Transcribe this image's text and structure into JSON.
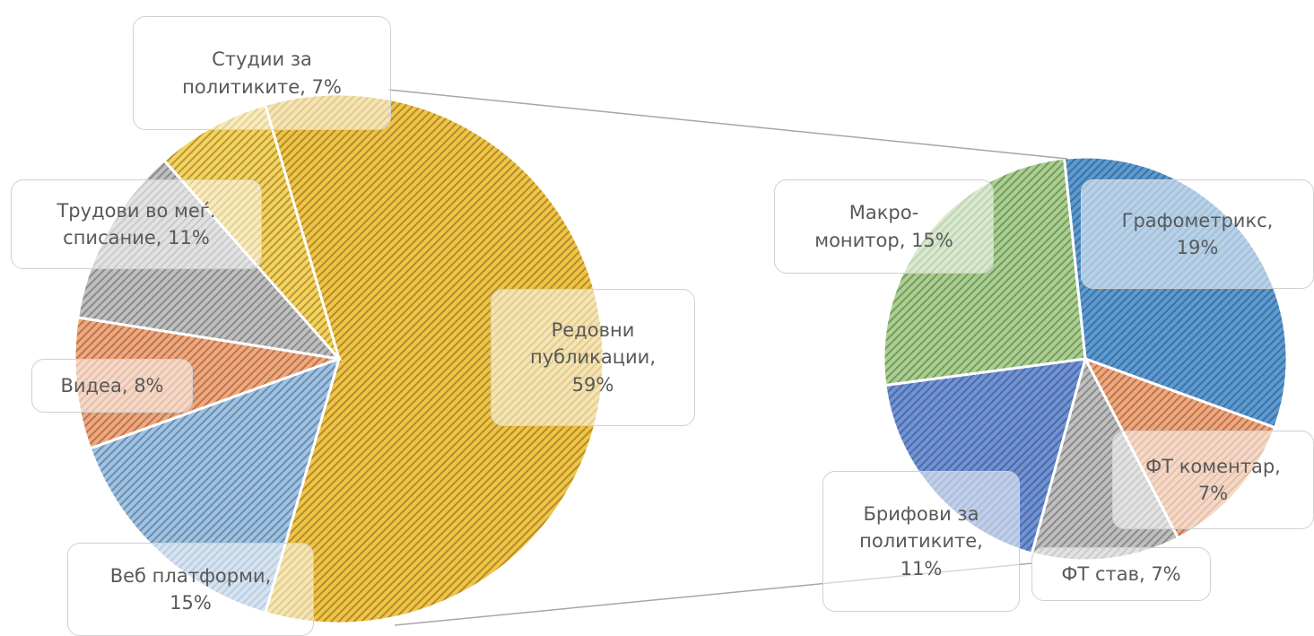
{
  "chart_data": [
    {
      "type": "pie",
      "values": [
        59,
        15,
        8,
        11,
        7
      ],
      "value_labels": [
        "Редовни\nпубликации,\n59%",
        "Веб платформи,\n15%",
        "Видеа, 8%",
        "Трудови  во меѓ.\nсписание, 11%",
        "Студии за\nполитиките, 7%"
      ],
      "colors": [
        "#f2c444",
        "#9dc3e6",
        "#f4a77a",
        "#bfbfbf",
        "#f7d35a"
      ]
    },
    {
      "type": "pie",
      "values": [
        19,
        7,
        7,
        11,
        15
      ],
      "value_labels": [
        "Графометрикс,\n19%",
        "ФТ коментар,\n7%",
        "ФТ став, 7%",
        "Брифови за\nполитиките,\n11%",
        "Макро-\nмонитор, 15%"
      ],
      "colors": [
        "#5b9bd5",
        "#f4a77a",
        "#bfbfbf",
        "#6f93d8",
        "#a9d18e"
      ]
    }
  ]
}
